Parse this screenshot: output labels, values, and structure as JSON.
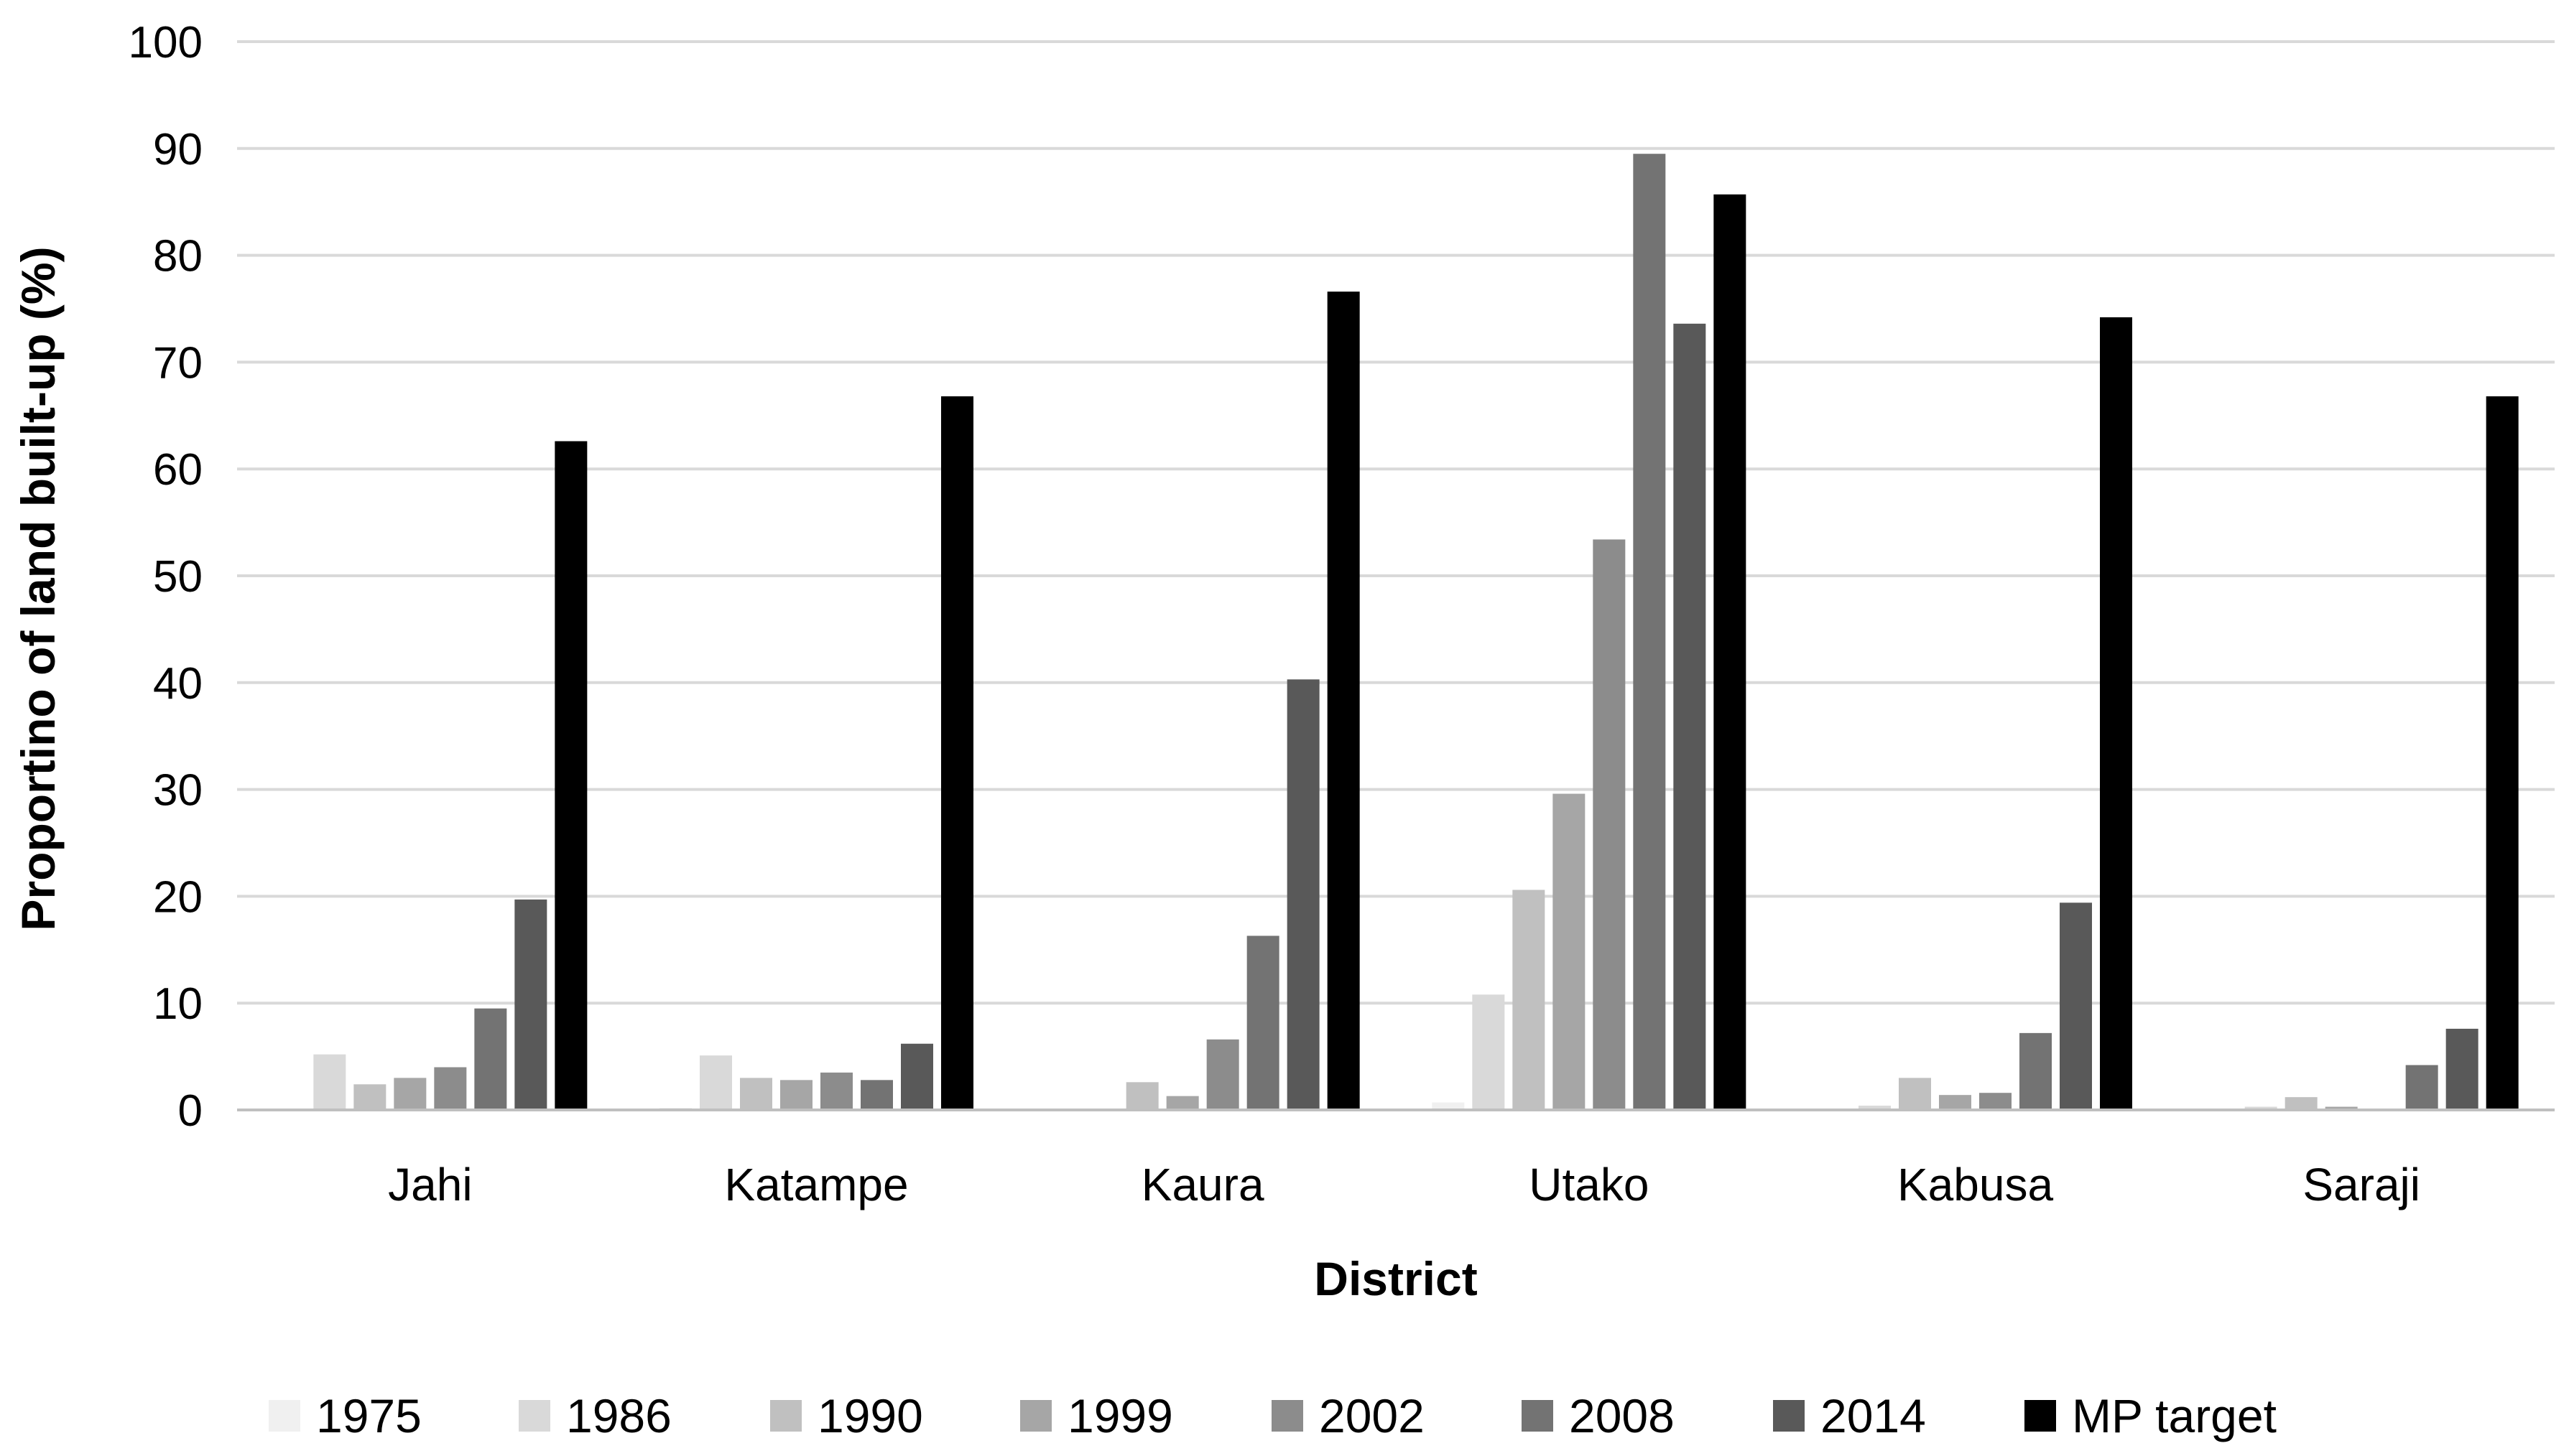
{
  "chart_data": {
    "type": "bar",
    "title": "",
    "xlabel": "District",
    "ylabel": "Proportino of land built-up (%)",
    "ylim": [
      0,
      100
    ],
    "yticks": [
      0,
      10,
      20,
      30,
      40,
      50,
      60,
      70,
      80,
      90,
      100
    ],
    "grid": true,
    "legend_position": "bottom",
    "categories": [
      "Jahi",
      "Katampe",
      "Kaura",
      "Utako",
      "Kabusa",
      "Saraji"
    ],
    "series": [
      {
        "name": "1975",
        "color": "#f0f0f0",
        "values": [
          0,
          0.2,
          0,
          0.7,
          0,
          0
        ]
      },
      {
        "name": "1986",
        "color": "#d9d9d9",
        "values": [
          5.2,
          5.1,
          0,
          10.8,
          0.4,
          0.3
        ]
      },
      {
        "name": "1990",
        "color": "#c0c0c0",
        "values": [
          2.4,
          3.0,
          2.6,
          20.6,
          3.0,
          1.2
        ]
      },
      {
        "name": "1999",
        "color": "#a6a6a6",
        "values": [
          3.0,
          2.8,
          1.3,
          29.6,
          1.4,
          0.3
        ]
      },
      {
        "name": "2002",
        "color": "#8c8c8c",
        "values": [
          4.0,
          3.5,
          6.6,
          53.4,
          1.6,
          0
        ]
      },
      {
        "name": "2008",
        "color": "#737373",
        "values": [
          9.5,
          2.8,
          16.3,
          89.5,
          7.2,
          4.2
        ]
      },
      {
        "name": "2014",
        "color": "#595959",
        "values": [
          19.7,
          6.2,
          40.3,
          73.6,
          19.4,
          7.6
        ]
      },
      {
        "name": "MP target",
        "color": "#000000",
        "values": [
          62.6,
          66.8,
          76.6,
          85.7,
          74.2,
          66.8
        ]
      }
    ]
  }
}
